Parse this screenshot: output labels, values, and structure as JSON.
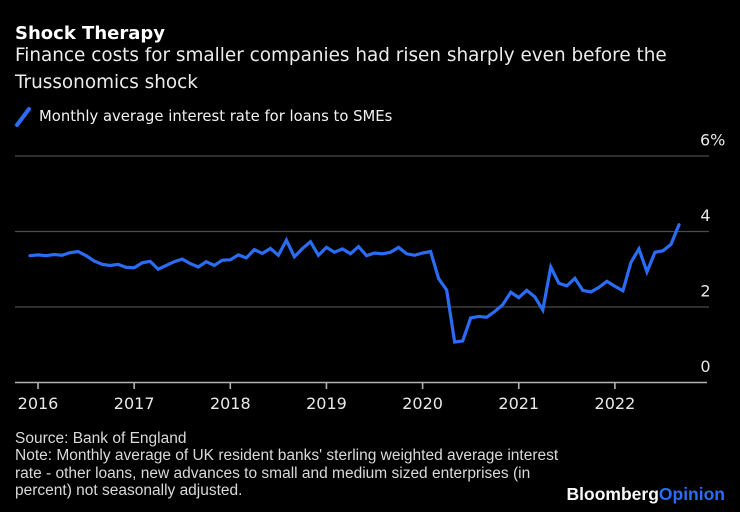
{
  "header": {
    "title": "Shock Therapy",
    "subtitle_lines": [
      "Finance costs for smaller companies had risen sharply even before the",
      "Trussonomics shock"
    ]
  },
  "legend": {
    "label": "Monthly average interest rate for loans to SMEs",
    "marker": "slash-icon"
  },
  "footer": {
    "source": "Source: Bank of England",
    "note_lines": [
      "Note: Monthly average of UK resident banks' sterling weighted average interest",
      "rate - other loans, new advances to small and medium sized enterprises (in",
      "percent) not seasonally adjusted."
    ],
    "logo": {
      "brand": "Bloomberg",
      "suffix": "Opinion"
    }
  },
  "colors": {
    "background": "#000000",
    "line_blue": "#2a6cf4",
    "grid_gray": "#4a4a4a",
    "axis_gray": "#b3b3b3",
    "label_gray": "#e8e8e8"
  },
  "chart_data": {
    "type": "line",
    "title": "Shock Therapy",
    "ylabel": "",
    "xlabel": "",
    "frequency": "monthly",
    "x_start": "2015-12",
    "x_end": "2022-09",
    "x_ticks": [
      "2016",
      "2017",
      "2018",
      "2019",
      "2020",
      "2021",
      "2022"
    ],
    "y_ticks": [
      {
        "value": 6,
        "label": "6%"
      },
      {
        "value": 4,
        "label": "4"
      },
      {
        "value": 2,
        "label": "2"
      },
      {
        "value": 0,
        "label": "0"
      }
    ],
    "ylim": [
      0,
      6.5
    ],
    "grid": "horizontal",
    "legend_position": "top-left",
    "series": [
      {
        "name": "Monthly average interest rate for loans to SMEs",
        "color": "#2a6cf4",
        "values": [
          3.36,
          3.38,
          3.36,
          3.39,
          3.37,
          3.44,
          3.47,
          3.36,
          3.22,
          3.13,
          3.1,
          3.13,
          3.05,
          3.04,
          3.17,
          3.21,
          3.0,
          3.1,
          3.2,
          3.27,
          3.15,
          3.06,
          3.2,
          3.1,
          3.24,
          3.25,
          3.38,
          3.3,
          3.52,
          3.42,
          3.55,
          3.37,
          3.77,
          3.33,
          3.55,
          3.73,
          3.37,
          3.58,
          3.45,
          3.54,
          3.41,
          3.6,
          3.36,
          3.43,
          3.41,
          3.45,
          3.58,
          3.41,
          3.37,
          3.43,
          3.47,
          2.75,
          2.45,
          1.07,
          1.1,
          1.71,
          1.75,
          1.73,
          1.88,
          2.06,
          2.39,
          2.25,
          2.44,
          2.27,
          1.92,
          3.06,
          2.63,
          2.56,
          2.76,
          2.44,
          2.4,
          2.52,
          2.68,
          2.55,
          2.43,
          3.18,
          3.54,
          2.93,
          3.45,
          3.49,
          3.66,
          4.18
        ]
      }
    ]
  }
}
